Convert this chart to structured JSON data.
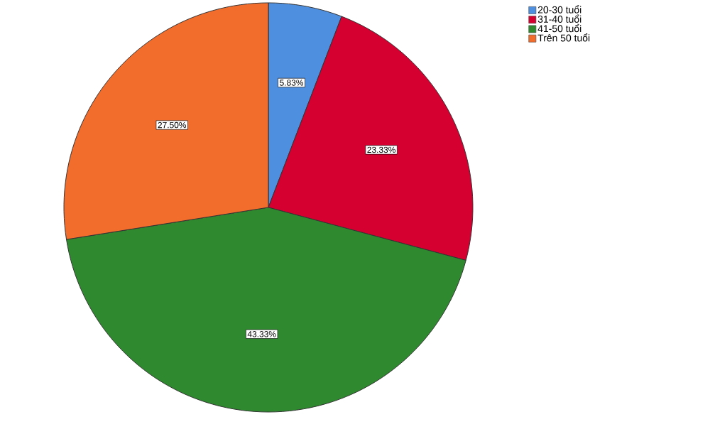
{
  "chart_data": {
    "type": "pie",
    "categories": [
      "20-30 tuổi",
      "31-40 tuổi",
      "41-50 tuổi",
      "Trên 50 tuổi"
    ],
    "values": [
      5.83,
      23.33,
      43.33,
      27.5
    ],
    "colors": [
      "#4f8fdf",
      "#d5002f",
      "#2f8a2f",
      "#f26c2c"
    ],
    "value_labels": [
      "5.83%",
      "23.33%",
      "43.33%",
      "27.50%"
    ],
    "legend": "top right"
  }
}
